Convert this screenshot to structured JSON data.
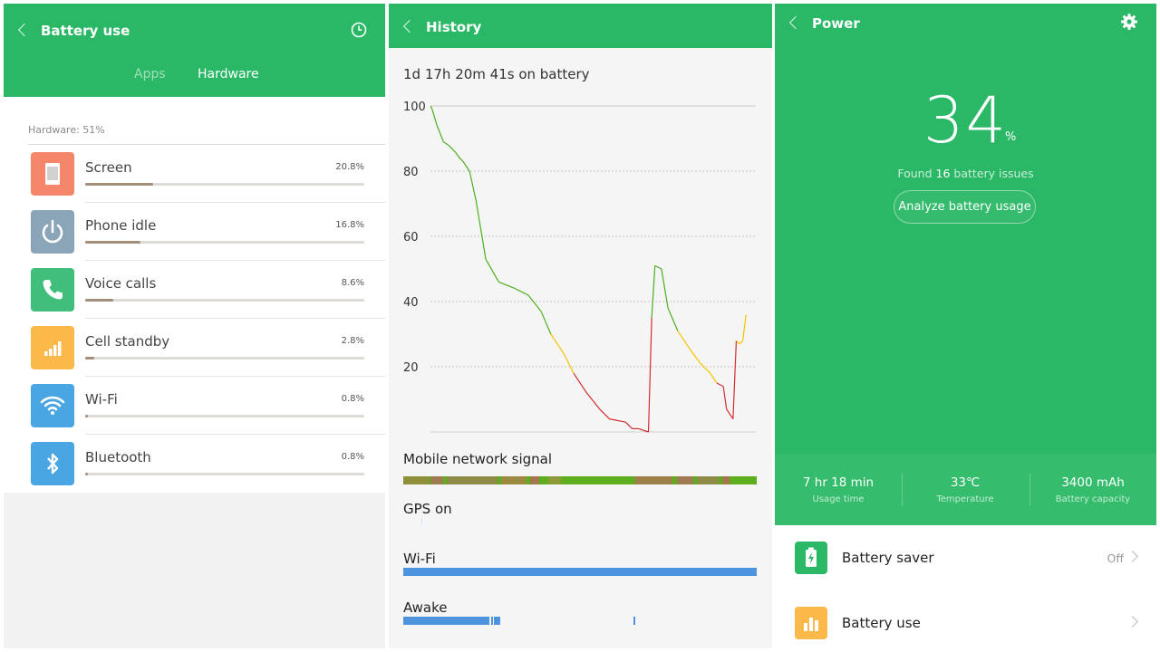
{
  "battery_use": {
    "title": "Battery use",
    "tabs": [
      "Apps",
      "Hardware"
    ],
    "section_label": "Hardware: 51%",
    "items": [
      {
        "name": "Screen",
        "percent": "20.8%",
        "fraction": 0.208,
        "color": "#f4876a",
        "icon": "screen-icon"
      },
      {
        "name": "Phone idle",
        "percent": "16.8%",
        "fraction": 0.168,
        "color": "#8aa5b7",
        "icon": "power-icon"
      },
      {
        "name": "Voice calls",
        "percent": "8.6%",
        "fraction": 0.086,
        "color": "#3fbf7a",
        "icon": "phone-icon"
      },
      {
        "name": "Cell standby",
        "percent": "2.8%",
        "fraction": 0.028,
        "color": "#fbb94a",
        "icon": "cell-signal-icon"
      },
      {
        "name": "Wi-Fi",
        "percent": "0.8%",
        "fraction": 0.008,
        "color": "#4aa6e2",
        "icon": "wifi-icon"
      },
      {
        "name": "Bluetooth",
        "percent": "0.8%",
        "fraction": 0.008,
        "color": "#4aa6e2",
        "icon": "bluetooth-icon"
      }
    ]
  },
  "history": {
    "title": "History",
    "on_battery": "1d 17h 20m 41s on battery",
    "chart_data": {
      "type": "line",
      "yticks": [
        "100",
        "80",
        "60",
        "40",
        "20"
      ],
      "ylim": [
        0,
        100
      ],
      "x": [
        0,
        0.5,
        2,
        4,
        5.5,
        7.5,
        9,
        10,
        12,
        14,
        17,
        21,
        26,
        30,
        34,
        37,
        41,
        44,
        48,
        52,
        55,
        60,
        62,
        64,
        67,
        68,
        69,
        71,
        73,
        76,
        80,
        83,
        86,
        88,
        90,
        91,
        93,
        94,
        95,
        96,
        97
      ],
      "y": [
        100,
        99,
        94,
        89,
        88,
        86,
        84,
        83,
        80,
        71,
        53,
        46,
        44,
        42,
        37,
        30,
        24,
        18,
        12,
        7,
        4,
        3,
        1,
        1,
        0,
        35,
        51,
        50,
        38,
        31,
        25,
        21,
        18,
        15,
        14,
        7,
        4,
        28,
        27,
        28,
        36
      ],
      "colors": {
        "high": "#4caf1e",
        "mid": "#f5c400",
        "low": "#d22d2d"
      }
    },
    "tracks": [
      {
        "label": "Mobile network signal",
        "color": "#5cae1e"
      },
      {
        "label": "GPS on",
        "color": "#cfe3f5"
      },
      {
        "label": "Wi-Fi",
        "color": "#4c95de"
      },
      {
        "label": "Awake",
        "color": "#4c95de"
      }
    ]
  },
  "power": {
    "title": "Power",
    "level": "34",
    "level_unit": "%",
    "found_prefix": "Found ",
    "found_count": "16",
    "found_suffix": " battery issues",
    "analyze_label": "Analyze battery usage",
    "stats": [
      {
        "value": "7 hr 18 min",
        "label": "Usage time"
      },
      {
        "value": "33℃",
        "label": "Temperature"
      },
      {
        "value": "3400 mAh",
        "label": "Battery capacity"
      }
    ],
    "menu": [
      {
        "name": "Battery saver",
        "value": "Off",
        "color": "#2bb866",
        "icon": "battery-saver-icon"
      },
      {
        "name": "Battery use",
        "value": "",
        "color": "#fbb94a",
        "icon": "bar-chart-icon"
      }
    ]
  }
}
